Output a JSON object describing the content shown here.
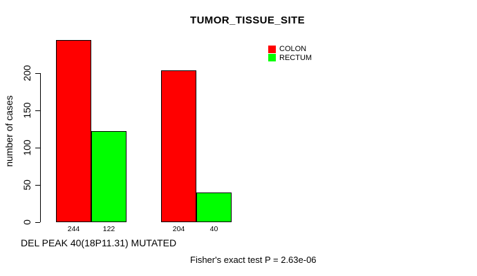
{
  "chart_data": {
    "type": "bar",
    "title": "TUMOR_TISSUE_SITE",
    "ylabel": "number of cases",
    "xlabel": "DEL PEAK 40(18P11.31) MUTATED",
    "annotation": "Fisher's exact test P = 2.63e-06",
    "yticks": [
      0,
      50,
      100,
      150,
      200
    ],
    "ylim": [
      0,
      250
    ],
    "grid": false,
    "legend_position": "top-right",
    "series": [
      {
        "name": "COLON",
        "color": "#FF0000",
        "values": [
          244,
          204
        ]
      },
      {
        "name": "RECTUM",
        "color": "#00FF00",
        "values": [
          122,
          40
        ]
      }
    ],
    "bar_value_labels": [
      "244",
      "122",
      "204",
      "40"
    ]
  },
  "colors": {
    "bar_border": "#000000",
    "text": "#000000",
    "background": "#FFFFFF"
  }
}
